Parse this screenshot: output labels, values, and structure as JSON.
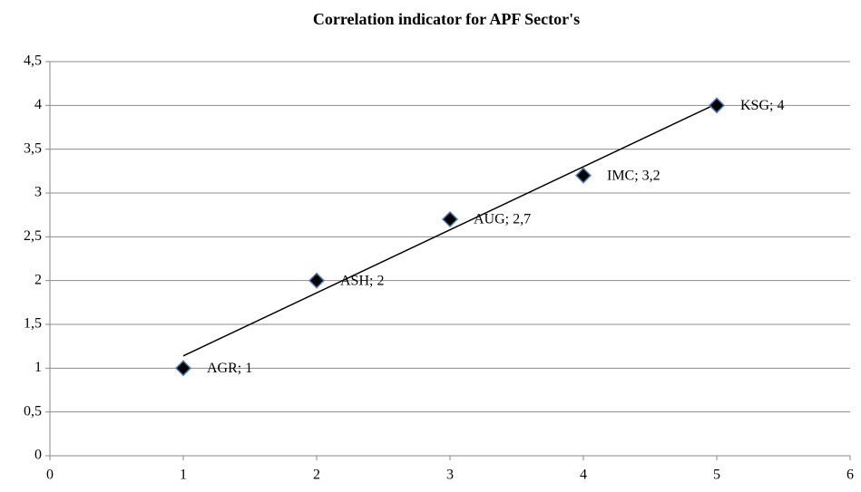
{
  "chart_data": {
    "type": "scatter",
    "title": "Correlation indicator for APF Sector's",
    "x": [
      1,
      2,
      3,
      4,
      5
    ],
    "values": [
      1,
      2,
      2.7,
      3.2,
      4
    ],
    "value_labels": [
      "AGR; 1",
      "ASH; 2",
      "AUG; 2,7",
      "IMC; 3,2",
      "KSG; 4"
    ],
    "color": "#000000",
    "marker_edge_color": "#4f81bd",
    "trendline": "linear",
    "trendline_color": "#000000",
    "xlim": [
      0,
      6
    ],
    "xticks": [
      0,
      1,
      2,
      3,
      4,
      5,
      6
    ],
    "ylim": [
      0,
      4.5
    ],
    "yticks": [
      0,
      {
        "value": 0.5,
        "label": "0,5"
      },
      1,
      {
        "value": 1.5,
        "label": "1,5"
      },
      2,
      {
        "value": 2.5,
        "label": "2,5"
      },
      3,
      {
        "value": 3.5,
        "label": "3,5"
      },
      4,
      {
        "value": 4.5,
        "label": "4,5"
      }
    ],
    "grid": true
  }
}
